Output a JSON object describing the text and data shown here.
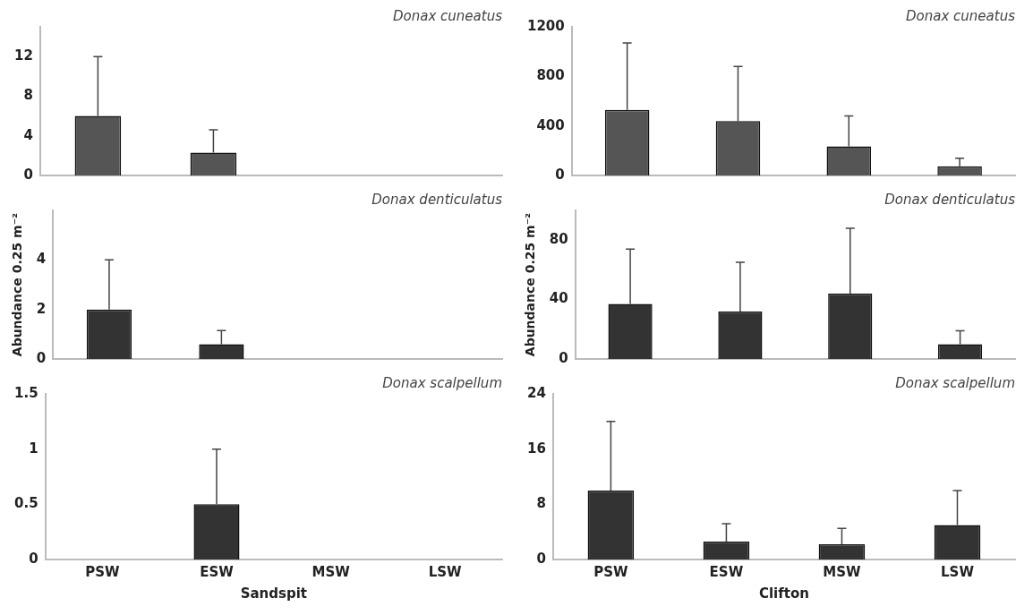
{
  "chart_data": [
    {
      "type": "bar",
      "title": "Donax cuneatus",
      "categories": [
        null,
        null,
        null,
        null
      ],
      "values": [
        6,
        2.3,
        0,
        0
      ],
      "errors": [
        [
          6,
          12
        ],
        [
          2.3,
          4.6
        ],
        null,
        null
      ],
      "color": "#555555",
      "ylim": [
        0,
        15
      ],
      "yticks": [
        0,
        4,
        8,
        12
      ],
      "tick_labels": "y"
    },
    {
      "type": "bar",
      "title": "Donax cuneatus",
      "categories": [
        null,
        null,
        null,
        null
      ],
      "values": [
        530,
        440,
        235,
        75
      ],
      "errors": [
        [
          530,
          1070
        ],
        [
          440,
          880
        ],
        [
          235,
          480
        ],
        [
          75,
          140
        ]
      ],
      "color": "#555555",
      "ylim": [
        0,
        1200
      ],
      "yticks": [
        0,
        400,
        800,
        1200
      ],
      "tick_labels": "y"
    },
    {
      "type": "bar",
      "title": "Donax denticulatus",
      "ylabel": "Abundance 0.25 m⁻²",
      "categories": [
        null,
        null,
        null,
        null
      ],
      "values": [
        2,
        0.6,
        0,
        0
      ],
      "errors": [
        [
          2,
          4
        ],
        [
          0.6,
          1.15
        ],
        null,
        null
      ],
      "color": "#333333",
      "ylim": [
        0,
        6
      ],
      "yticks": [
        0,
        2,
        4
      ],
      "tick_labels": "y"
    },
    {
      "type": "bar",
      "title": "Donax denticulatus",
      "ylabel": "Abundance 0.25 m⁻²",
      "categories": [
        null,
        null,
        null,
        null
      ],
      "values": [
        37,
        32,
        44,
        10
      ],
      "errors": [
        [
          37,
          74
        ],
        [
          32,
          65
        ],
        [
          44,
          88
        ],
        [
          10,
          19
        ]
      ],
      "color": "#333333",
      "ylim": [
        0,
        100
      ],
      "yticks": [
        0,
        40,
        80
      ],
      "tick_labels": "y"
    },
    {
      "type": "bar",
      "title": "Donax scalpellum",
      "xlabel": "Sandspit",
      "categories": [
        "PSW",
        "ESW",
        "MSW",
        "LSW"
      ],
      "values": [
        0,
        0.5,
        0,
        0
      ],
      "errors": [
        null,
        [
          0.5,
          1
        ],
        null,
        null
      ],
      "color": "#333333",
      "ylim": [
        0,
        1.5
      ],
      "yticks": [
        0,
        0.5,
        1,
        1.5
      ]
    },
    {
      "type": "bar",
      "title": "Donax scalpellum",
      "xlabel": "Clifton",
      "categories": [
        "PSW",
        "ESW",
        "MSW",
        "LSW"
      ],
      "values": [
        10,
        2.6,
        2.2,
        5
      ],
      "errors": [
        [
          10,
          20
        ],
        [
          2.6,
          5.2
        ],
        [
          2.2,
          4.5
        ],
        [
          5,
          10
        ]
      ],
      "color": "#333333",
      "ylim": [
        0,
        24
      ],
      "yticks": [
        0,
        8,
        16,
        24
      ]
    }
  ]
}
